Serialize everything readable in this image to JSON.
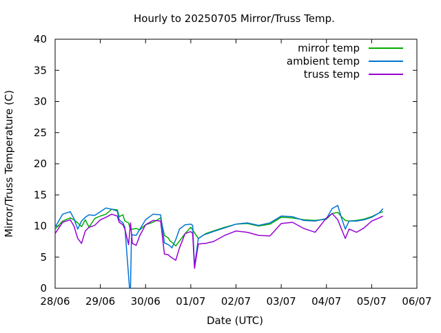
{
  "chart_data": {
    "type": "line",
    "title": "Hourly to 20250705 Mirror/Truss Temp.",
    "xlabel": "Date (UTC)",
    "ylabel": "Mirror/Truss Temperature (C)",
    "x_unit": "date (UTC)",
    "xlim": [
      "2025-06-28",
      "2025-07-06"
    ],
    "ylim": [
      0,
      40
    ],
    "x_ticks": [
      {
        "date": "2025-06-28",
        "label": "28/06"
      },
      {
        "date": "2025-06-29",
        "label": "29/06"
      },
      {
        "date": "2025-06-30",
        "label": "30/06"
      },
      {
        "date": "2025-07-01",
        "label": "01/07"
      },
      {
        "date": "2025-07-02",
        "label": "02/07"
      },
      {
        "date": "2025-07-03",
        "label": "03/07"
      },
      {
        "date": "2025-07-04",
        "label": "04/07"
      },
      {
        "date": "2025-07-05",
        "label": "05/07"
      },
      {
        "date": "2025-07-06",
        "label": "06/07"
      }
    ],
    "y_ticks": [
      0,
      5,
      10,
      15,
      20,
      25,
      30,
      35,
      40
    ],
    "grid": false,
    "legend_position": "top-right",
    "series": [
      {
        "name": "mirror temp",
        "color": "#00aa00",
        "x": [
          "2025-06-28 00:00",
          "2025-06-28 04:00",
          "2025-06-28 08:00",
          "2025-06-28 10:00",
          "2025-06-28 12:00",
          "2025-06-28 14:00",
          "2025-06-28 16:00",
          "2025-06-28 18:00",
          "2025-06-28 21:00",
          "2025-06-29 00:00",
          "2025-06-29 03:00",
          "2025-06-29 06:00",
          "2025-06-29 09:00",
          "2025-06-29 10:00",
          "2025-06-29 12:00",
          "2025-06-29 13:00",
          "2025-06-29 15:00",
          "2025-06-29 16:00",
          "2025-06-29 17:00",
          "2025-06-29 19:00",
          "2025-06-29 21:00",
          "2025-06-30 00:00",
          "2025-06-30 04:00",
          "2025-06-30 08:00",
          "2025-06-30 10:00",
          "2025-06-30 12:00",
          "2025-06-30 13:00",
          "2025-06-30 14:00",
          "2025-06-30 16:00",
          "2025-06-30 18:00",
          "2025-06-30 21:00",
          "2025-07-01 00:00",
          "2025-07-01 04:00",
          "2025-07-01 07:00",
          "2025-07-01 08:00",
          "2025-07-01 09:00",
          "2025-07-01 12:00",
          "2025-07-01 18:00",
          "2025-07-02 00:00",
          "2025-07-02 06:00",
          "2025-07-02 12:00",
          "2025-07-02 18:00",
          "2025-07-03 00:00",
          "2025-07-03 06:00",
          "2025-07-03 12:00",
          "2025-07-03 18:00",
          "2025-07-04 00:00",
          "2025-07-04 03:00",
          "2025-07-04 06:00",
          "2025-07-04 08:00",
          "2025-07-04 10:00",
          "2025-07-04 12:00",
          "2025-07-04 16:00",
          "2025-07-04 20:00",
          "2025-07-05 00:00",
          "2025-07-05 04:00",
          "2025-07-05 06:00"
        ],
        "y": [
          9.5,
          10.8,
          11.3,
          11.0,
          10.5,
          9.9,
          11.0,
          9.8,
          11.2,
          11.6,
          11.9,
          12.7,
          12.6,
          11.5,
          11.8,
          10.8,
          10.5,
          9.4,
          9.5,
          9.6,
          9.4,
          10.2,
          10.6,
          11.3,
          8.5,
          8.1,
          7.6,
          7.4,
          6.8,
          7.6,
          8.8,
          9.8,
          8.0,
          8.6,
          8.8,
          8.9,
          9.2,
          9.8,
          10.3,
          10.4,
          10.0,
          10.3,
          11.4,
          11.3,
          11.0,
          10.9,
          11.1,
          12.0,
          12.2,
          11.5,
          10.9,
          10.8,
          10.9,
          11.1,
          11.5,
          12.1,
          12.3
        ]
      },
      {
        "name": "ambient temp",
        "color": "#0072d4",
        "x": [
          "2025-06-28 00:00",
          "2025-06-28 04:00",
          "2025-06-28 08:00",
          "2025-06-28 10:00",
          "2025-06-28 12:00",
          "2025-06-28 14:00",
          "2025-06-28 16:00",
          "2025-06-28 18:00",
          "2025-06-28 21:00",
          "2025-06-29 00:00",
          "2025-06-29 03:00",
          "2025-06-29 06:00",
          "2025-06-29 09:00",
          "2025-06-29 10:00",
          "2025-06-29 12:00",
          "2025-06-29 13:00",
          "2025-06-29 15:00",
          "2025-06-29 15:30",
          "2025-06-29 16:00",
          "2025-06-29 16:30",
          "2025-06-29 17:00",
          "2025-06-29 19:00",
          "2025-06-29 21:00",
          "2025-06-30 00:00",
          "2025-06-30 04:00",
          "2025-06-30 08:00",
          "2025-06-30 10:00",
          "2025-06-30 12:00",
          "2025-06-30 13:00",
          "2025-06-30 14:00",
          "2025-06-30 16:00",
          "2025-06-30 18:00",
          "2025-06-30 21:00",
          "2025-07-01 00:00",
          "2025-07-01 01:00",
          "2025-07-01 02:00",
          "2025-07-01 04:00",
          "2025-07-01 07:00",
          "2025-07-01 08:00",
          "2025-07-01 09:00",
          "2025-07-01 12:00",
          "2025-07-01 18:00",
          "2025-07-02 00:00",
          "2025-07-02 06:00",
          "2025-07-02 12:00",
          "2025-07-02 18:00",
          "2025-07-03 00:00",
          "2025-07-03 06:00",
          "2025-07-03 12:00",
          "2025-07-03 18:00",
          "2025-07-04 00:00",
          "2025-07-04 03:00",
          "2025-07-04 06:00",
          "2025-07-04 08:00",
          "2025-07-04 10:00",
          "2025-07-04 12:00",
          "2025-07-04 16:00",
          "2025-07-04 20:00",
          "2025-07-05 00:00",
          "2025-07-05 04:00",
          "2025-07-05 06:00"
        ],
        "y": [
          9.8,
          11.9,
          12.3,
          11.2,
          9.5,
          10.8,
          11.4,
          11.8,
          11.7,
          12.3,
          12.9,
          12.7,
          12.4,
          11.0,
          10.5,
          9.8,
          2.0,
          0.0,
          0.0,
          8.0,
          8.6,
          8.5,
          9.5,
          11.0,
          11.9,
          11.8,
          7.3,
          7.0,
          6.8,
          6.5,
          7.8,
          9.5,
          10.2,
          10.3,
          10.1,
          3.5,
          8.0,
          8.6,
          8.7,
          8.8,
          9.1,
          9.7,
          10.3,
          10.5,
          10.1,
          10.5,
          11.6,
          11.5,
          10.9,
          10.8,
          11.2,
          12.8,
          13.3,
          11.3,
          9.5,
          10.8,
          10.8,
          11.0,
          11.4,
          12.1,
          12.8
        ]
      },
      {
        "name": "truss temp",
        "color": "#9500d3",
        "x": [
          "2025-06-28 00:00",
          "2025-06-28 04:00",
          "2025-06-28 08:00",
          "2025-06-28 10:00",
          "2025-06-28 12:00",
          "2025-06-28 14:00",
          "2025-06-28 16:00",
          "2025-06-28 18:00",
          "2025-06-28 21:00",
          "2025-06-29 00:00",
          "2025-06-29 03:00",
          "2025-06-29 06:00",
          "2025-06-29 09:00",
          "2025-06-29 10:00",
          "2025-06-29 12:00",
          "2025-06-29 13:00",
          "2025-06-29 15:00",
          "2025-06-29 16:00",
          "2025-06-29 17:00",
          "2025-06-29 19:00",
          "2025-06-29 21:00",
          "2025-06-30 00:00",
          "2025-06-30 04:00",
          "2025-06-30 08:00",
          "2025-06-30 10:00",
          "2025-06-30 12:00",
          "2025-06-30 13:00",
          "2025-06-30 14:00",
          "2025-06-30 16:00",
          "2025-06-30 18:00",
          "2025-06-30 21:00",
          "2025-07-01 00:00",
          "2025-07-01 01:00",
          "2025-07-01 02:00",
          "2025-07-01 04:00",
          "2025-07-01 07:00",
          "2025-07-01 08:00",
          "2025-07-01 09:00",
          "2025-07-01 12:00",
          "2025-07-01 18:00",
          "2025-07-02 00:00",
          "2025-07-02 06:00",
          "2025-07-02 12:00",
          "2025-07-02 18:00",
          "2025-07-03 00:00",
          "2025-07-03 06:00",
          "2025-07-03 12:00",
          "2025-07-03 18:00",
          "2025-07-04 00:00",
          "2025-07-04 03:00",
          "2025-07-04 06:00",
          "2025-07-04 08:00",
          "2025-07-04 10:00",
          "2025-07-04 12:00",
          "2025-07-04 16:00",
          "2025-07-04 20:00",
          "2025-07-05 00:00",
          "2025-07-05 04:00",
          "2025-07-05 06:00"
        ],
        "y": [
          8.8,
          10.6,
          11.0,
          10.0,
          8.0,
          7.2,
          9.2,
          9.8,
          10.1,
          11.0,
          11.4,
          11.9,
          11.6,
          10.6,
          10.2,
          9.5,
          7.0,
          10.5,
          7.2,
          6.9,
          8.5,
          10.2,
          10.9,
          10.8,
          5.5,
          5.4,
          5.1,
          4.9,
          4.5,
          6.5,
          8.8,
          9.1,
          8.8,
          3.2,
          7.1,
          7.2,
          7.2,
          7.3,
          7.5,
          8.5,
          9.2,
          9.0,
          8.5,
          8.4,
          10.4,
          10.6,
          9.6,
          9.0,
          11.3,
          12.0,
          11.0,
          9.5,
          8.0,
          9.5,
          9.0,
          9.7,
          10.8,
          11.3,
          11.6
        ]
      }
    ]
  }
}
